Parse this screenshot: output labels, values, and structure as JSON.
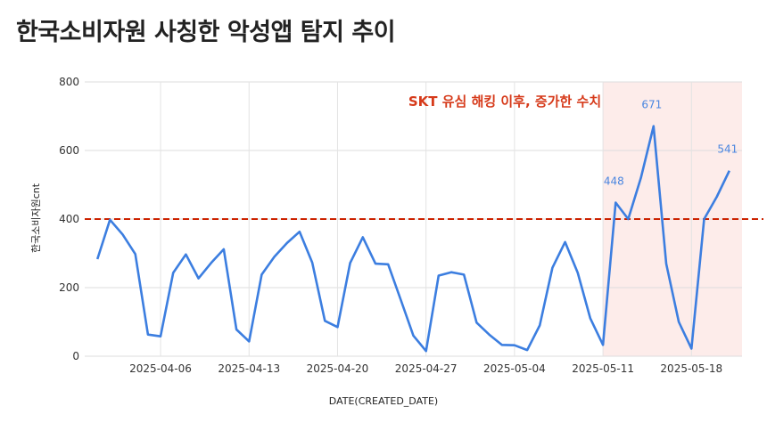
{
  "chart_data": {
    "type": "line",
    "title": "한국소비자원 사칭한 악성앱 탐지 추이",
    "xlabel": "DATE(CREATED_DATE)",
    "ylabel": "한국소비자원cnt",
    "ylim": [
      0,
      800
    ],
    "yticks": [
      "0",
      "200",
      "400",
      "600",
      "800"
    ],
    "xlim": [
      "2025-03-31",
      "2025-05-22"
    ],
    "xticks": [
      "2025-04-06",
      "2025-04-13",
      "2025-04-20",
      "2025-04-27",
      "2025-05-04",
      "2025-05-11",
      "2025-05-18"
    ],
    "grid": true,
    "series": [
      {
        "color": "#3c7ee0",
        "points": [
          [
            "2025-04-01",
            283
          ],
          [
            "2025-04-02",
            398
          ],
          [
            "2025-04-03",
            355
          ],
          [
            "2025-04-04",
            298
          ],
          [
            "2025-04-05",
            63
          ],
          [
            "2025-04-06",
            58
          ],
          [
            "2025-04-07",
            243
          ],
          [
            "2025-04-08",
            297
          ],
          [
            "2025-04-09",
            227
          ],
          [
            "2025-04-10",
            272
          ],
          [
            "2025-04-11",
            312
          ],
          [
            "2025-04-12",
            78
          ],
          [
            "2025-04-13",
            43
          ],
          [
            "2025-04-14",
            238
          ],
          [
            "2025-04-15",
            290
          ],
          [
            "2025-04-16",
            330
          ],
          [
            "2025-04-17",
            363
          ],
          [
            "2025-04-18",
            273
          ],
          [
            "2025-04-19",
            103
          ],
          [
            "2025-04-20",
            85
          ],
          [
            "2025-04-21",
            272
          ],
          [
            "2025-04-22",
            347
          ],
          [
            "2025-04-23",
            270
          ],
          [
            "2025-04-24",
            268
          ],
          [
            "2025-04-25",
            165
          ],
          [
            "2025-04-26",
            60
          ],
          [
            "2025-04-27",
            15
          ],
          [
            "2025-04-28",
            235
          ],
          [
            "2025-04-29",
            245
          ],
          [
            "2025-04-30",
            238
          ],
          [
            "2025-05-01",
            98
          ],
          [
            "2025-05-02",
            63
          ],
          [
            "2025-05-03",
            33
          ],
          [
            "2025-05-04",
            32
          ],
          [
            "2025-05-05",
            18
          ],
          [
            "2025-05-06",
            90
          ],
          [
            "2025-05-07",
            258
          ],
          [
            "2025-05-08",
            333
          ],
          [
            "2025-05-09",
            243
          ],
          [
            "2025-05-10",
            110
          ],
          [
            "2025-05-11",
            33
          ],
          [
            "2025-05-12",
            448
          ],
          [
            "2025-05-13",
            400
          ],
          [
            "2025-05-14",
            520
          ],
          [
            "2025-05-15",
            671
          ],
          [
            "2025-05-16",
            270
          ],
          [
            "2025-05-17",
            100
          ],
          [
            "2025-05-18",
            22
          ],
          [
            "2025-05-19",
            400
          ],
          [
            "2025-05-20",
            465
          ],
          [
            "2025-05-21",
            541
          ]
        ],
        "point_labels": [
          {
            "x": "2025-05-12",
            "y": 448,
            "text": "448"
          },
          {
            "x": "2025-05-15",
            "y": 671,
            "text": "671"
          },
          {
            "x": "2025-05-21",
            "y": 541,
            "text": "541"
          }
        ]
      }
    ],
    "reference_line": {
      "y": 400,
      "color": "#cc2200",
      "style": "dashed"
    },
    "highlight_band": {
      "from": "2025-05-11",
      "to": "2025-05-22",
      "color": "#fdecea"
    },
    "annotation": {
      "text": "SKT 유심 해킹 이후, 증가한 수치",
      "color": "#d63a1a"
    }
  }
}
